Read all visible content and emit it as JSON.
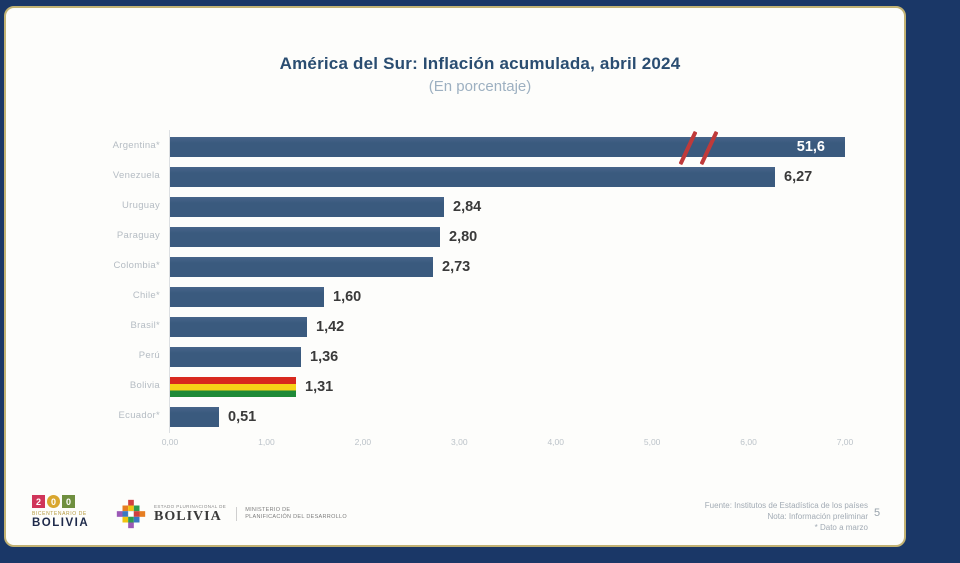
{
  "chart_data": {
    "type": "bar",
    "orientation": "horizontal",
    "title": "América del Sur: Inflación acumulada, abril 2024",
    "subtitle": "(En porcentaje)",
    "categories": [
      "Argentina*",
      "Venezuela",
      "Uruguay",
      "Paraguay",
      "Colombia*",
      "Chile*",
      "Brasil*",
      "Perú",
      "Bolivia",
      "Ecuador*"
    ],
    "values": [
      51.6,
      6.27,
      2.84,
      2.8,
      2.73,
      1.6,
      1.42,
      1.36,
      1.31,
      0.51
    ],
    "value_labels": [
      "51,6",
      "6,27",
      "2,84",
      "2,80",
      "2,73",
      "1,60",
      "1,42",
      "1,36",
      "1,31",
      "0,51"
    ],
    "xlim": [
      0,
      7
    ],
    "x_ticks": [
      "0,00",
      "1,00",
      "2,00",
      "3,00",
      "4,00",
      "5,00",
      "6,00",
      "7,00"
    ],
    "grid": false,
    "legend": "none",
    "bar_color": "#3a5a7e",
    "axis_break": {
      "category": "Argentina*",
      "symbol": "//",
      "color": "#bf3a3a"
    },
    "highlight": {
      "category": "Bolivia",
      "style": "bolivia-flag-stripes",
      "colors": [
        "#d8281e",
        "#f7d117",
        "#1f8a38"
      ]
    }
  },
  "slide": {
    "background_color": "#1a3767",
    "border_color": "#c2b273"
  },
  "footer": {
    "bicentenario": {
      "digits": [
        "2",
        "0",
        "0"
      ],
      "line1": "BICENTENARIO DE",
      "line2": "BOLIVIA"
    },
    "ministry": {
      "small_text": "ESTADO PLURINACIONAL DE",
      "name": "BOLIVIA",
      "dept_line1": "MINISTERIO DE",
      "dept_line2": "PLANIFICACIÓN DEL DESARROLLO"
    },
    "source_lines": [
      "Fuente: Institutos de Estadística de los países",
      "Nota: Información preliminar",
      "* Dato a marzo"
    ],
    "page_number": "5"
  }
}
